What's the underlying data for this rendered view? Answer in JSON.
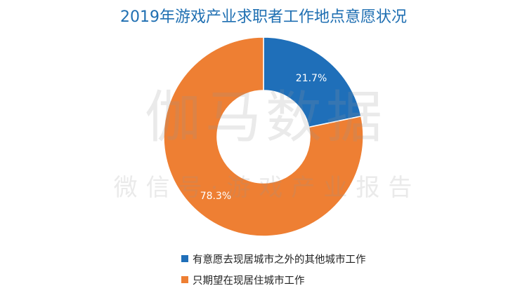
{
  "chart_data": {
    "type": "pie",
    "title": "2019年游戏产业求职者工作地点意愿状况",
    "categories": [
      "有意愿去现居城市之外的其他城市工作",
      "只期望在现居住城市工作"
    ],
    "values": [
      21.7,
      78.3
    ],
    "data_labels": [
      "21.7%",
      "78.3%"
    ],
    "colors": [
      "#1f6fb9",
      "#ee7f33"
    ],
    "donut": true,
    "legend_position": "bottom"
  },
  "watermark": {
    "main": "伽马数据",
    "sub": "微信号·游戏产业报告"
  }
}
